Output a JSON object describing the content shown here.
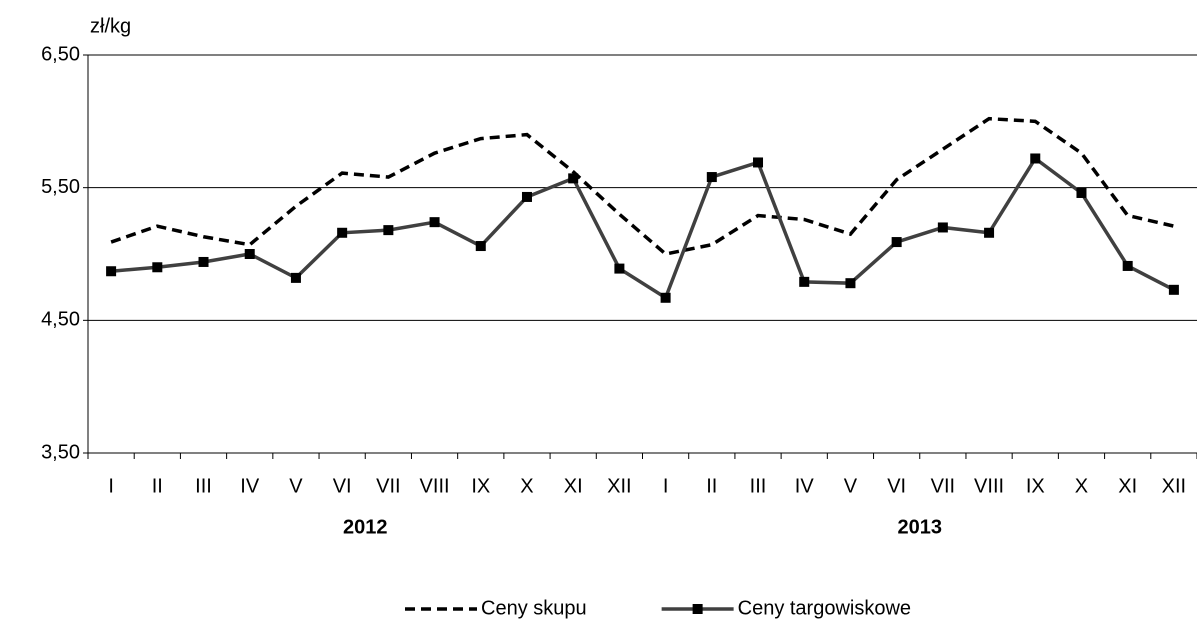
{
  "chart_data": {
    "type": "line",
    "y_label": "zł/kg",
    "categories": [
      "I",
      "II",
      "III",
      "IV",
      "V",
      "VI",
      "VII",
      "VIII",
      "IX",
      "X",
      "XI",
      "XII",
      "I",
      "II",
      "III",
      "IV",
      "V",
      "VI",
      "VII",
      "VIII",
      "IX",
      "X",
      "XI",
      "XII"
    ],
    "years": [
      "2012",
      "2013"
    ],
    "series": [
      {
        "name": "Ceny skupu",
        "color": "#000000",
        "line_style": "dashed",
        "values": [
          5.09,
          5.21,
          5.13,
          5.07,
          5.36,
          5.61,
          5.58,
          5.76,
          5.87,
          5.9,
          5.62,
          5.3,
          5.0,
          5.07,
          5.29,
          5.26,
          5.15,
          5.56,
          5.79,
          6.02,
          6.0,
          5.76,
          5.29,
          5.21
        ]
      },
      {
        "name": "Ceny targowiskowe",
        "color": "#404040",
        "line_style": "solid",
        "marker": "square",
        "values": [
          4.87,
          4.9,
          4.94,
          5.0,
          4.82,
          5.16,
          5.18,
          5.24,
          5.06,
          5.43,
          5.57,
          4.89,
          4.67,
          5.58,
          5.69,
          4.79,
          4.78,
          5.09,
          5.2,
          5.16,
          5.72,
          5.46,
          4.91,
          4.73
        ]
      }
    ],
    "ylim": [
      3.5,
      6.5
    ],
    "yticks": [
      {
        "value": 3.5,
        "label": "3,50"
      },
      {
        "value": 4.5,
        "label": "4,50"
      },
      {
        "value": 5.5,
        "label": "5,50"
      },
      {
        "value": 6.5,
        "label": "6,50"
      }
    ],
    "grid": true,
    "legend": "bottom"
  }
}
